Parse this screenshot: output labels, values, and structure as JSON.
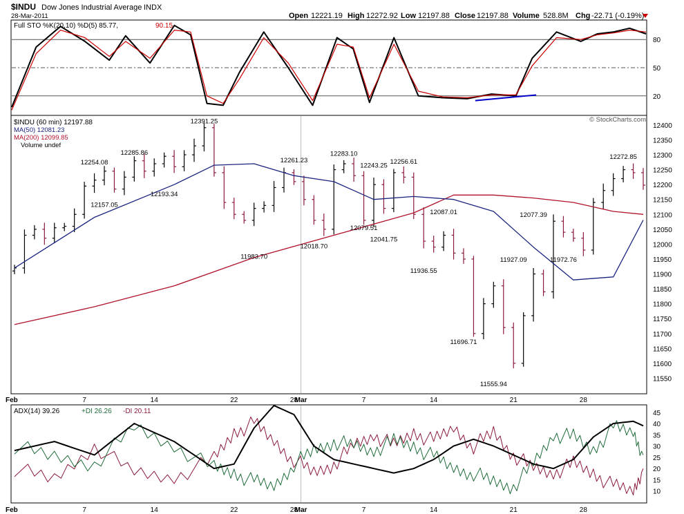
{
  "header": {
    "symbol": "$INDU",
    "name": "Dow Jones Industrial Average",
    "exchange": "INDX",
    "date": "28-Mar-2011",
    "open_label": "Open",
    "open": "12221.19",
    "high_label": "High",
    "high": "12272.92",
    "low_label": "Low",
    "low": "12197.88",
    "close_label": "Close",
    "close": "12197.88",
    "volume_label": "Volume",
    "volume": "528.8M",
    "chg_label": "Chg",
    "chg": "-22.71 (-0.19%)",
    "watermark": "© StockCharts.com",
    "down_color": "#cc0000"
  },
  "chart_data": [
    {
      "type": "line",
      "panel": "stochastic",
      "title": "Full STO %K(20,10) %D(5) 85.77, 90.15",
      "legend_k": "Full STO %K(20,10) %D(5) 85.77,",
      "legend_d": "90.15",
      "ylim": [
        0,
        100
      ],
      "yticks": [
        80,
        50,
        20
      ],
      "x": [
        0,
        3,
        6,
        9,
        12,
        14,
        17,
        20,
        22,
        24,
        26,
        28,
        31,
        34,
        37,
        40,
        42,
        44,
        47,
        50,
        53,
        56,
        59,
        62,
        64,
        67,
        70,
        72,
        74,
        76,
        78
      ],
      "series": [
        {
          "name": "%K",
          "color": "#000000",
          "values": [
            8,
            72,
            94,
            78,
            58,
            84,
            55,
            95,
            85,
            12,
            10,
            45,
            88,
            50,
            10,
            82,
            70,
            13,
            82,
            20,
            18,
            17,
            22,
            20,
            60,
            88,
            78,
            86,
            88,
            92,
            86
          ]
        },
        {
          "name": "%D",
          "color": "#cc0000",
          "values": [
            5,
            65,
            90,
            82,
            62,
            78,
            60,
            90,
            88,
            20,
            12,
            38,
            82,
            55,
            15,
            75,
            72,
            18,
            75,
            25,
            19,
            18,
            21,
            21,
            52,
            82,
            80,
            85,
            87,
            90,
            88
          ]
        }
      ],
      "trendline": {
        "x": [
          57,
          64.5
        ],
        "y": [
          15,
          21
        ],
        "color": "#0000cc"
      }
    },
    {
      "type": "bar",
      "panel": "price",
      "title": "$INDU (60 min) 12197.88",
      "legend": [
        "$INDU (60 min) 12197.88",
        "MA(50) 12081.23",
        "MA(200) 12099.85",
        "Volume undef"
      ],
      "ylim": [
        11500,
        12430
      ],
      "yticks": [
        12400,
        12350,
        12300,
        12250,
        12200,
        12150,
        12100,
        12050,
        12000,
        11950,
        11900,
        11850,
        11800,
        11750,
        11700,
        11650,
        11600,
        11550
      ],
      "closes": [
        11920,
        12030,
        12050,
        12020,
        12055,
        12060,
        12100,
        12195,
        12215,
        12245,
        12185,
        12225,
        12280,
        12245,
        12270,
        12295,
        12260,
        12300,
        12330,
        12391,
        12240,
        12140,
        12100,
        12080,
        12120,
        12130,
        12190,
        12240,
        12210,
        12150,
        12080,
        12050,
        12250,
        12270,
        12230,
        12080,
        12200,
        12120,
        12240,
        12225,
        12100,
        12010,
        11990,
        12030,
        11970,
        11950,
        11700,
        11800,
        11860,
        11720,
        11600,
        11760,
        11900,
        11840,
        12077,
        12040,
        12020,
        11980,
        12140,
        12180,
        12220,
        12250,
        12240,
        12198
      ],
      "ma50": {
        "name": "MA(50)",
        "color": "#1a237e",
        "x": [
          0,
          8,
          16,
          20,
          24,
          28,
          32,
          36,
          40,
          44,
          48,
          52,
          56,
          60,
          63
        ],
        "values": [
          11920,
          12090,
          12200,
          12265,
          12270,
          12230,
          12210,
          12150,
          12160,
          12150,
          12110,
          11990,
          11880,
          11890,
          12081
        ]
      },
      "ma200": {
        "name": "MA(200)",
        "color": "#b0102b",
        "x": [
          0,
          8,
          16,
          24,
          32,
          40,
          44,
          48,
          52,
          56,
          60,
          63
        ],
        "values": [
          11730,
          11790,
          11860,
          11955,
          12030,
          12105,
          12165,
          12165,
          12155,
          12140,
          12110,
          12100
        ]
      },
      "annotations": [
        {
          "label": "12391.25",
          "bar": 19,
          "value": 12391.25,
          "pos": "above"
        },
        {
          "label": "12254.08",
          "bar": 8,
          "value": 12254.08,
          "pos": "above"
        },
        {
          "label": "12285.86",
          "bar": 12,
          "value": 12285.86,
          "pos": "above"
        },
        {
          "label": "12157.05",
          "bar": 9,
          "value": 12157.05,
          "pos": "below"
        },
        {
          "label": "12193.34",
          "bar": 15,
          "value": 12193.34,
          "pos": "below"
        },
        {
          "label": "11983.70",
          "bar": 24,
          "value": 11983.7,
          "pos": "below"
        },
        {
          "label": "12261.23",
          "bar": 28,
          "value": 12261.23,
          "pos": "above"
        },
        {
          "label": "12018.70",
          "bar": 30,
          "value": 12018.7,
          "pos": "below"
        },
        {
          "label": "12283.10",
          "bar": 33,
          "value": 12283.1,
          "pos": "above"
        },
        {
          "label": "12243.25",
          "bar": 36,
          "value": 12243.25,
          "pos": "above"
        },
        {
          "label": "12079.51",
          "bar": 35,
          "value": 12079.51,
          "pos": "below"
        },
        {
          "label": "12041.75",
          "bar": 37,
          "value": 12041.75,
          "pos": "below"
        },
        {
          "label": "12256.61",
          "bar": 39,
          "value": 12256.61,
          "pos": "above"
        },
        {
          "label": "12087.01",
          "bar": 43,
          "value": 12087.01,
          "pos": "above"
        },
        {
          "label": "11936.55",
          "bar": 41,
          "value": 11936.55,
          "pos": "below"
        },
        {
          "label": "11696.71",
          "bar": 45,
          "value": 11696.71,
          "pos": "below"
        },
        {
          "label": "11555.94",
          "bar": 48,
          "value": 11555.94,
          "pos": "below"
        },
        {
          "label": "11927.09",
          "bar": 50,
          "value": 11927.09,
          "pos": "above"
        },
        {
          "label": "12077.39",
          "bar": 52,
          "value": 12077.39,
          "pos": "above"
        },
        {
          "label": "11972.76",
          "bar": 55,
          "value": 11972.76,
          "pos": "below"
        },
        {
          "label": "12272.85",
          "bar": 61,
          "value": 12272.85,
          "pos": "above"
        }
      ]
    },
    {
      "type": "line",
      "panel": "adx",
      "title": "ADX(14) 39.26 +DI 26.26 -DI 20.11",
      "legend_adx": "ADX(14) 39.26",
      "legend_pdi": "+DI 26.26",
      "legend_mdi": "-DI 20.11",
      "ylim": [
        5,
        48
      ],
      "yticks": [
        45,
        40,
        35,
        30,
        25,
        20,
        15,
        10
      ],
      "x": [
        0,
        4,
        8,
        12,
        16,
        20,
        22,
        24,
        26,
        28,
        30,
        32,
        34,
        36,
        38,
        40,
        42,
        44,
        46,
        48,
        50,
        52,
        54,
        56,
        58,
        60,
        62,
        63
      ],
      "series": [
        {
          "name": "ADX",
          "color": "#000000",
          "values": [
            28,
            32,
            26,
            40,
            32,
            20,
            22,
            38,
            48,
            44,
            30,
            24,
            22,
            20,
            18,
            20,
            24,
            30,
            33,
            30,
            26,
            22,
            20,
            24,
            34,
            40,
            41,
            39
          ]
        },
        {
          "name": "+DI",
          "color": "#1f6b3a",
          "values": [
            30,
            25,
            22,
            38,
            30,
            20,
            18,
            14,
            12,
            22,
            28,
            32,
            30,
            28,
            32,
            30,
            25,
            20,
            18,
            14,
            12,
            22,
            35,
            34,
            28,
            38,
            36,
            26
          ]
        },
        {
          "name": "-DI",
          "color": "#8b1a3a",
          "values": [
            20,
            15,
            30,
            18,
            16,
            24,
            36,
            40,
            32,
            24,
            18,
            22,
            30,
            35,
            30,
            36,
            32,
            38,
            30,
            36,
            26,
            20,
            18,
            22,
            18,
            12,
            10,
            20
          ]
        }
      ]
    }
  ],
  "x_axis": {
    "labels": [
      "Feb",
      "7",
      "14",
      "22",
      "28",
      "Mar",
      "7",
      "14",
      "21",
      "28"
    ],
    "bars": [
      0,
      7,
      14,
      22,
      28,
      28.7,
      35,
      42,
      50,
      57
    ]
  }
}
